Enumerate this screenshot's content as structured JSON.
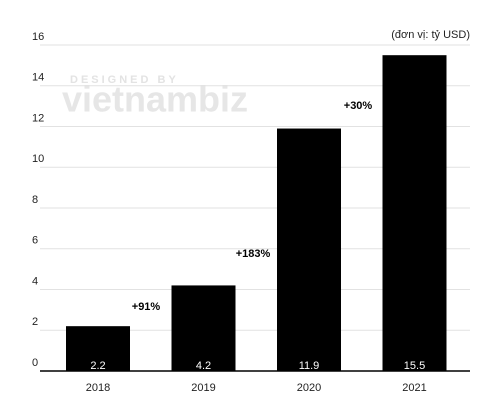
{
  "chart_data": {
    "type": "bar",
    "unit_note": "(đơn vị: tỷ USD)",
    "watermark": [
      "DESIGNED BY",
      "vietnambiz"
    ],
    "categories": [
      "2018",
      "2019",
      "2020",
      "2021"
    ],
    "values": [
      2.2,
      4.2,
      11.9,
      15.5
    ],
    "color": "#000000",
    "ylim": [
      0,
      16
    ],
    "yticks": [
      0,
      2,
      4,
      6,
      8,
      10,
      12,
      14,
      16
    ],
    "grid": true,
    "growth_labels": [
      "+91%",
      "+183%",
      "+30%"
    ]
  }
}
